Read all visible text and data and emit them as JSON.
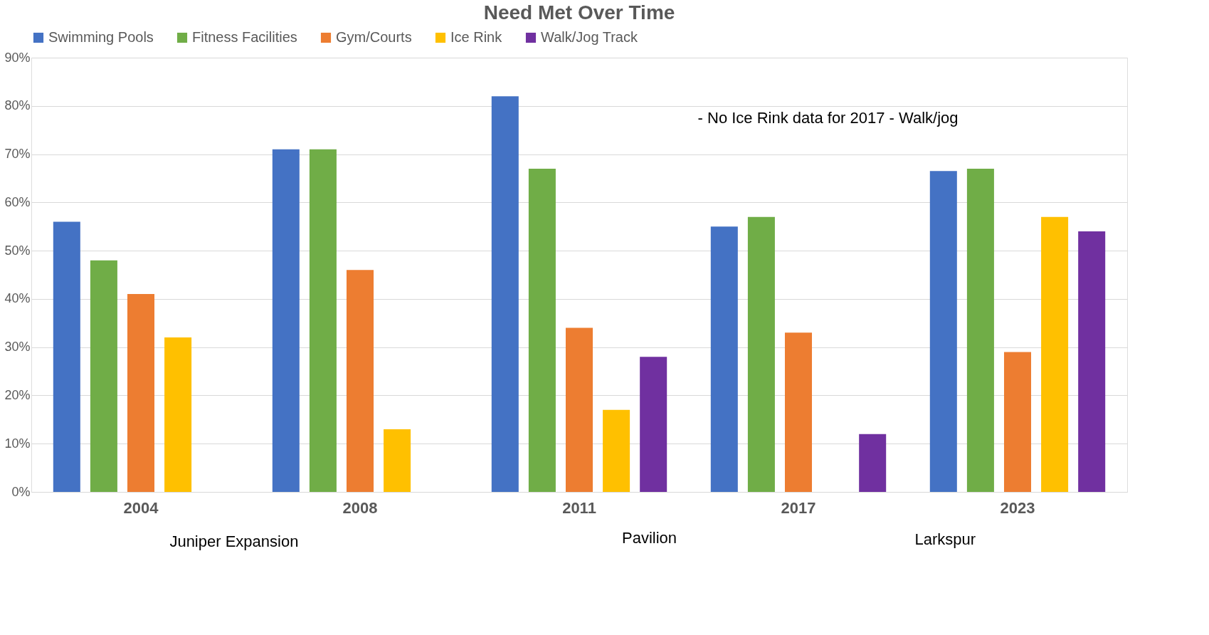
{
  "chart_data": {
    "type": "bar",
    "title": "Need Met Over Time",
    "categories": [
      "2004",
      "2008",
      "2011",
      "2017",
      "2023"
    ],
    "series": [
      {
        "name": "Swimming Pools",
        "color": "#4472c4",
        "values": [
          56,
          71,
          82,
          55,
          66.5
        ]
      },
      {
        "name": "Fitness Facilities",
        "color": "#70ad47",
        "values": [
          48,
          71,
          67,
          57,
          67
        ]
      },
      {
        "name": "Gym/Courts",
        "color": "#ed7d31",
        "values": [
          41,
          46,
          34,
          33,
          29
        ]
      },
      {
        "name": "Ice Rink",
        "color": "#ffc000",
        "values": [
          32,
          13,
          17,
          null,
          57
        ]
      },
      {
        "name": "Walk/Jog Track",
        "color": "#7030a0",
        "values": [
          null,
          null,
          28,
          12,
          54
        ]
      }
    ],
    "ylim": [
      0,
      90
    ],
    "yticks": [
      {
        "value": 0,
        "label": "0%"
      },
      {
        "value": 10,
        "label": "10%"
      },
      {
        "value": 20,
        "label": "20%"
      },
      {
        "value": 30,
        "label": "30%"
      },
      {
        "value": 40,
        "label": "40%"
      },
      {
        "value": 50,
        "label": "50%"
      },
      {
        "value": 60,
        "label": "60%"
      },
      {
        "value": 70,
        "label": "70%"
      },
      {
        "value": 80,
        "label": "80%"
      },
      {
        "value": 90,
        "label": "90%"
      }
    ],
    "grid": "y",
    "legend": "top",
    "annotations": [
      "- No Ice Rink data for 2017 - Walk/jog",
      "Juniper Expansion",
      "Pavilion",
      "Larkspur"
    ]
  }
}
